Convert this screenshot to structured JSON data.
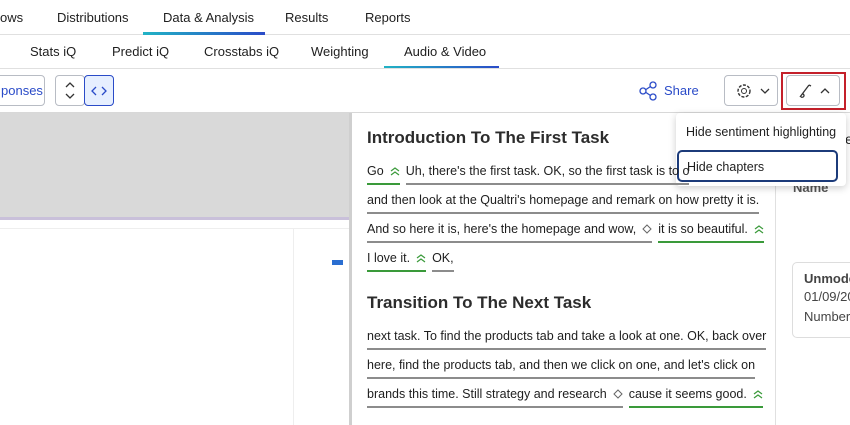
{
  "top_nav": [
    "ows",
    "Distributions",
    "Data & Analysis",
    "Results",
    "Reports"
  ],
  "sub_nav": [
    "Stats iQ",
    "Predict iQ",
    "Crosstabs iQ",
    "Weighting",
    "Audio & Video"
  ],
  "toolbar": {
    "responses_button": "ponses",
    "share": "Share"
  },
  "menu": [
    "Hide sentiment highlighting",
    "Hide chapters"
  ],
  "transcript": [
    {
      "title": "Introduction To The First Task",
      "lines": [
        [
          {
            "text": "Go",
            "color": "#3a9a3a"
          },
          {
            "text": "Uh, there's the first task. OK, so the first task is to o",
            "color": "#8c8c8c"
          }
        ],
        [
          {
            "text": "and then look at the Qualtri's homepage and remark on how pretty it is.",
            "color": "#8c8c8c"
          }
        ],
        [
          {
            "text": "And so here it is, here's the homepage and wow,",
            "color": "#8c8c8c"
          },
          {
            "text": "it is so beautiful.",
            "color": "#3a9a3a"
          }
        ],
        [
          {
            "text": "I love it.",
            "color": "#3a9a3a"
          },
          {
            "text": "OK,",
            "color": "#8c8c8c"
          }
        ]
      ]
    },
    {
      "title": "Transition To The Next Task",
      "lines": [
        [
          {
            "text": "next task. To find the products tab and take a look at one. OK, back over",
            "color": "#8c8c8c"
          }
        ],
        [
          {
            "text": "here, find the products tab, and then we click on one, and let's click on",
            "color": "#8c8c8c"
          }
        ],
        [
          {
            "text": "brands this time. Still strategy and research",
            "color": "#8c8c8c"
          },
          {
            "text": "cause it seems good.",
            "color": "#3a9a3a"
          }
        ]
      ]
    }
  ],
  "side_panel": {
    "partial": "se",
    "name_label": "Name",
    "card": {
      "title": "Unmode",
      "date": "01/09/20",
      "label": "Number"
    }
  }
}
